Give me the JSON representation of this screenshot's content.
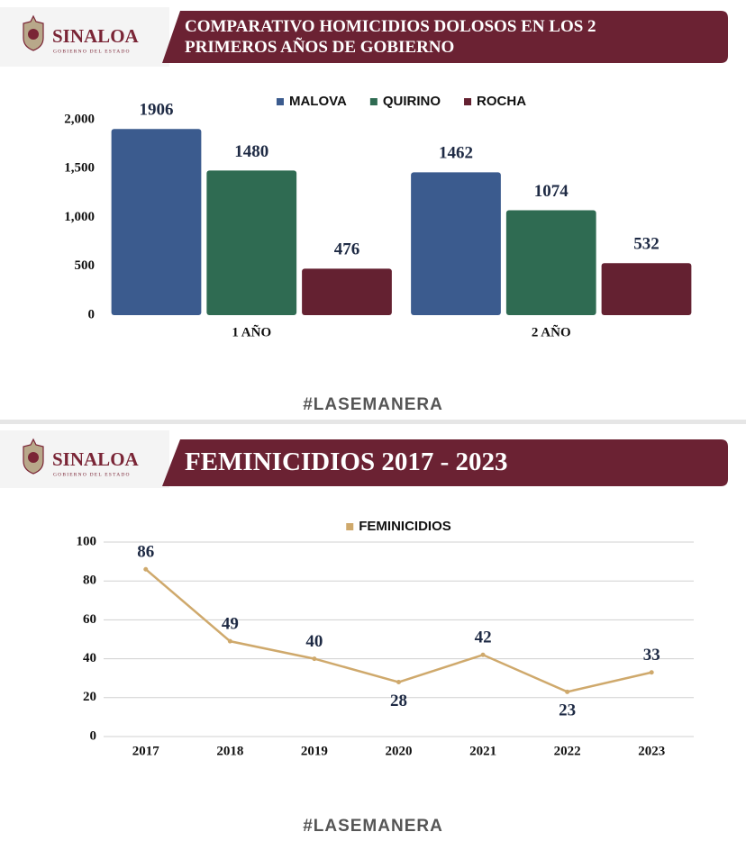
{
  "chart_data": [
    {
      "type": "bar",
      "brand": "SINALOA",
      "brand_subtitle": "GOBIERNO DEL ESTADO",
      "title": "COMPARATIVO HOMICIDIOS DOLOSOS EN LOS 2 PRIMEROS AÑOS DE GOBIERNO",
      "categories": [
        "1 AÑO",
        "2 AÑO"
      ],
      "series": [
        {
          "name": "MALOVA",
          "color": "#3b5b8e",
          "values": [
            1906,
            1462
          ]
        },
        {
          "name": "QUIRINO",
          "color": "#2f6b52",
          "values": [
            1480,
            1074
          ]
        },
        {
          "name": "ROCHA",
          "color": "#642131",
          "values": [
            476,
            532
          ]
        }
      ],
      "ylim": [
        0,
        2000
      ],
      "yticks": [
        {
          "value": 2000,
          "label": "2,000"
        },
        {
          "value": 1500,
          "label": "1,500"
        },
        {
          "value": 1000,
          "label": "1,000"
        },
        500,
        0
      ],
      "grid": false,
      "legend": "top",
      "footer": "#LASEMANERA"
    },
    {
      "type": "line",
      "brand": "SINALOA",
      "brand_subtitle": "GOBIERNO DEL ESTADO",
      "title": "FEMINICIDIOS 2017 - 2023",
      "categories": [
        "2017",
        "2018",
        "2019",
        "2020",
        "2021",
        "2022",
        "2023"
      ],
      "series": [
        {
          "name": "FEMINICIDIOS",
          "color": "#cfa96c",
          "values": [
            86,
            49,
            40,
            28,
            42,
            23,
            33
          ]
        }
      ],
      "ylim": [
        0,
        100
      ],
      "yticks": [
        0,
        20,
        40,
        60,
        80,
        100
      ],
      "grid": true,
      "legend": "top",
      "footer": "#LASEMANERA"
    }
  ]
}
